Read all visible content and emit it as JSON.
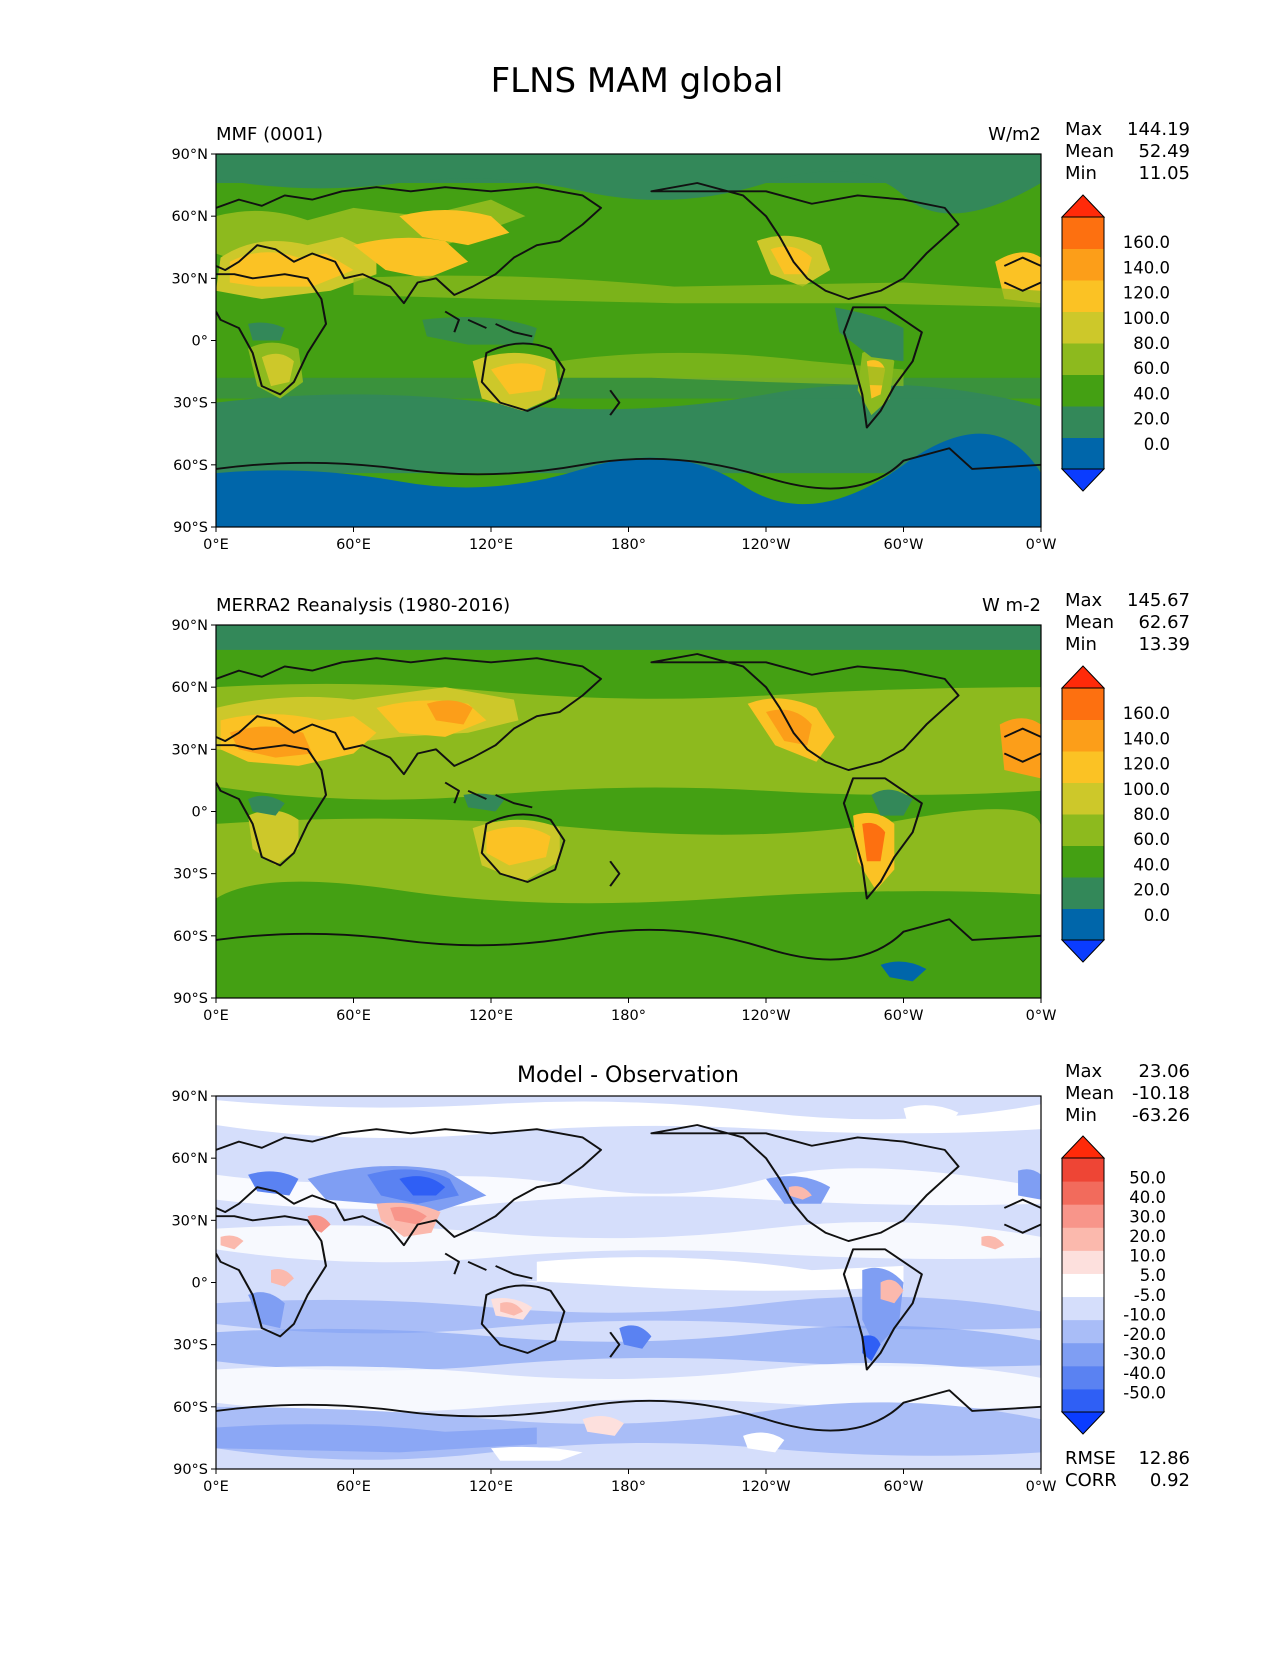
{
  "figure": {
    "title": "FLNS MAM global"
  },
  "colors": {
    "abs_levels": [
      "#0a3cff",
      "#0066aa",
      "#338859",
      "#44a013",
      "#8dba1e",
      "#cdc82a",
      "#fbc224",
      "#fc9e19",
      "#fd7010",
      "#ff2a09"
    ],
    "diff_levels": [
      "#0a3cff",
      "#2f5ff5",
      "#5a82f2",
      "#7f9ef3",
      "#a9bdf7",
      "#d5defb",
      "#ffffff",
      "#fde0dd",
      "#fbb9ad",
      "#f8958a",
      "#f26b5c",
      "#ee4535",
      "#ff2a09"
    ]
  },
  "axes_ticks": {
    "x": [
      "0°E",
      "60°E",
      "120°E",
      "180°",
      "120°W",
      "60°W",
      "0°W"
    ],
    "y": [
      "90°N",
      "60°N",
      "30°N",
      "0°",
      "30°S",
      "60°S",
      "90°S"
    ]
  },
  "chart_data": [
    {
      "type": "heatmap",
      "title_left": "MMF (0001)",
      "title_right": "W/m2",
      "stats": [
        {
          "label": "Max",
          "value": "144.19"
        },
        {
          "label": "Mean",
          "value": "52.49"
        },
        {
          "label": "Min",
          "value": "11.05"
        }
      ],
      "xlim": [
        0,
        360
      ],
      "ylim": [
        -90,
        90
      ],
      "colorbar_ticks": [
        "160.0",
        "140.0",
        "120.0",
        "100.0",
        "80.0",
        "60.0",
        "40.0",
        "20.0",
        "0.0"
      ],
      "colorbar_extend": "both",
      "colorbar_placement": "right"
    },
    {
      "type": "heatmap",
      "title_left": "MERRA2 Reanalysis (1980-2016)",
      "title_right": "W m-2",
      "stats": [
        {
          "label": "Max",
          "value": "145.67"
        },
        {
          "label": "Mean",
          "value": "62.67"
        },
        {
          "label": "Min",
          "value": "13.39"
        }
      ],
      "xlim": [
        0,
        360
      ],
      "ylim": [
        -90,
        90
      ],
      "colorbar_ticks": [
        "160.0",
        "140.0",
        "120.0",
        "100.0",
        "80.0",
        "60.0",
        "40.0",
        "20.0",
        "0.0"
      ],
      "colorbar_extend": "both",
      "colorbar_placement": "right"
    },
    {
      "type": "heatmap",
      "title_center": "Model - Observation",
      "stats": [
        {
          "label": "Max",
          "value": "23.06"
        },
        {
          "label": "Mean",
          "value": "-10.18"
        },
        {
          "label": "Min",
          "value": "-63.26"
        }
      ],
      "extra_stats": [
        {
          "label": "RMSE",
          "value": "12.86"
        },
        {
          "label": "CORR",
          "value": "0.92"
        }
      ],
      "xlim": [
        0,
        360
      ],
      "ylim": [
        -90,
        90
      ],
      "colorbar_ticks": [
        "50.0",
        "40.0",
        "30.0",
        "20.0",
        "10.0",
        "5.0",
        "-5.0",
        "-10.0",
        "-20.0",
        "-30.0",
        "-40.0",
        "-50.0"
      ],
      "colorbar_extend": "both",
      "colorbar_placement": "right"
    }
  ]
}
